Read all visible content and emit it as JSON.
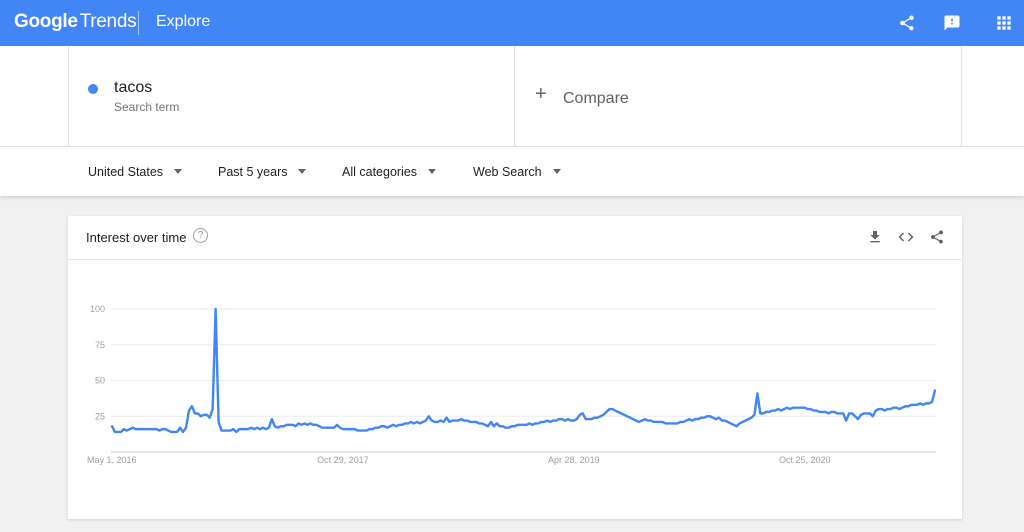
{
  "header": {
    "logo_brand": "Google",
    "logo_product": "Trends",
    "section": "Explore",
    "icons": [
      "share-icon",
      "feedback-icon",
      "apps-grid-icon"
    ]
  },
  "term": {
    "name": "tacos",
    "subtitle": "Search term",
    "color": "#4285f4"
  },
  "compare": {
    "label": "Compare"
  },
  "filters": {
    "region": "United States",
    "time": "Past 5 years",
    "category": "All categories",
    "search_type": "Web Search"
  },
  "card": {
    "title": "Interest over time",
    "help": "?",
    "icons": [
      "download-icon",
      "embed-icon",
      "share-icon"
    ]
  },
  "chart_data": {
    "type": "line",
    "title": "",
    "xlabel": "",
    "ylabel": "",
    "ylim": [
      0,
      100
    ],
    "yticks": [
      25,
      50,
      75,
      100
    ],
    "ytick_labels": [
      "25",
      "50",
      "75",
      "100"
    ],
    "xtick_labels": [
      "May 1, 2016",
      "Oct 29, 2017",
      "Apr 28, 2019",
      "Oct 25, 2020"
    ],
    "xtick_weeks": [
      0,
      78,
      156,
      234
    ],
    "grid": true,
    "series": [
      {
        "color": "#4285f4",
        "values": [
          18,
          14,
          14,
          14,
          16,
          15,
          16,
          17,
          16,
          16,
          16,
          16,
          16,
          16,
          16,
          16,
          15,
          16,
          16,
          15,
          14,
          14,
          14,
          17,
          14,
          17,
          29,
          32,
          27,
          27,
          25,
          26,
          26,
          24,
          30,
          100,
          21,
          15,
          15,
          15,
          15,
          16,
          14,
          16,
          16,
          16,
          16,
          17,
          16,
          17,
          16,
          17,
          16,
          17,
          23,
          18,
          17,
          18,
          18,
          19,
          19,
          19,
          18,
          20,
          19,
          20,
          19,
          20,
          19,
          19,
          18,
          17,
          17,
          17,
          17,
          17,
          19,
          17,
          16,
          16,
          16,
          16,
          16,
          15,
          15,
          15,
          15,
          16,
          16,
          17,
          17,
          18,
          18,
          17,
          18,
          19,
          18,
          19,
          19,
          20,
          20,
          21,
          20,
          21,
          20,
          21,
          22,
          25,
          22,
          21,
          21,
          22,
          21,
          24,
          21,
          22,
          22,
          22,
          23,
          22,
          22,
          21,
          21,
          21,
          20,
          20,
          19,
          18,
          21,
          18,
          20,
          18,
          18,
          17,
          17,
          18,
          18,
          19,
          19,
          19,
          19,
          20,
          19,
          20,
          20,
          21,
          21,
          22,
          21,
          22,
          22,
          23,
          23,
          22,
          23,
          22,
          22,
          23,
          26,
          27,
          23,
          23,
          23,
          24,
          24,
          25,
          26,
          28,
          30,
          30,
          29,
          28,
          27,
          26,
          25,
          24,
          23,
          22,
          21,
          22,
          23,
          22,
          22,
          21,
          21,
          21,
          21,
          20,
          20,
          20,
          20,
          20,
          21,
          21,
          22,
          23,
          22,
          23,
          23,
          24,
          24,
          25,
          25,
          24,
          23,
          24,
          22,
          22,
          21,
          20,
          19,
          18,
          20,
          21,
          22,
          23,
          24,
          26,
          41,
          27,
          27,
          28,
          28,
          29,
          29,
          30,
          29,
          30,
          31,
          30,
          31,
          31,
          31,
          31,
          31,
          30,
          30,
          29,
          29,
          28,
          28,
          28,
          27,
          28,
          28,
          27,
          27,
          27,
          22,
          27,
          27,
          25,
          23,
          26,
          27,
          27,
          27,
          25,
          29,
          30,
          30,
          29,
          30,
          30,
          31,
          31,
          30,
          31,
          32,
          32,
          33,
          33,
          33,
          34,
          33,
          34,
          34,
          35,
          43
        ]
      }
    ]
  }
}
